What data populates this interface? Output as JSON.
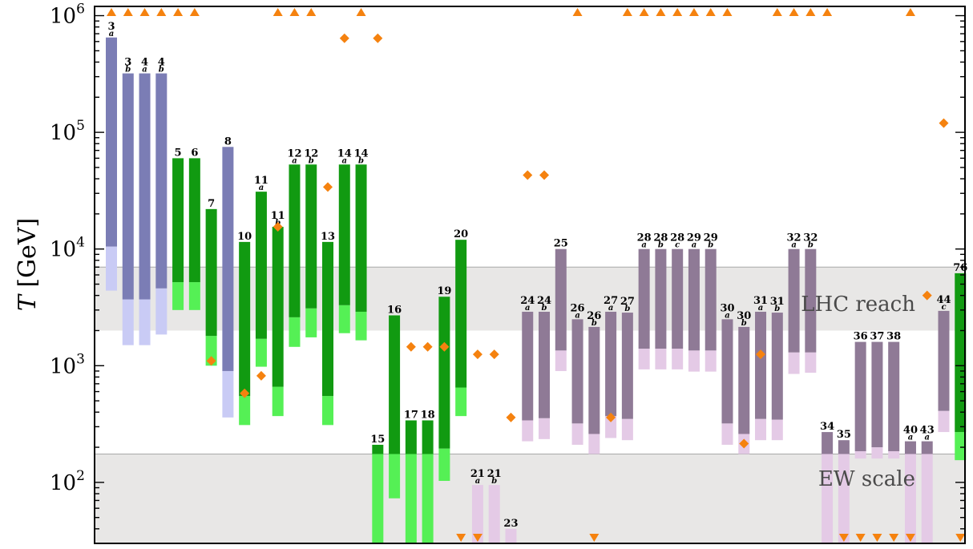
{
  "chart_data": {
    "type": "bar",
    "ylabel_var": "T",
    "ylabel_unit": "[GeV]",
    "yscale": "log",
    "ylim": [
      30,
      1200000
    ],
    "y_ticks": [
      {
        "value": 100,
        "exp": "2"
      },
      {
        "value": 1000,
        "exp": "3"
      },
      {
        "value": 10000,
        "exp": "4"
      },
      {
        "value": 100000,
        "exp": "5"
      },
      {
        "value": 1000000,
        "exp": "6"
      }
    ],
    "tick_base": "10",
    "bands": [
      {
        "label": "LHC reach",
        "low": 2000,
        "high": 7000
      },
      {
        "label": "EW scale",
        "low": 30,
        "high": 175
      }
    ],
    "colors": {
      "blue_dark": "#7b7db5",
      "blue_light": "#c9cbf5",
      "green_dark": "#119a11",
      "green_light": "#55f055",
      "purple_dark": "#8f7a96",
      "purple_light": "#e4cae6",
      "marker": "#f5820f",
      "band": "#e8e7e6"
    },
    "bars": [
      {
        "num": "3",
        "sub": "a",
        "c": "blue",
        "top": 650000,
        "mid": 10500,
        "bot": 4400
      },
      {
        "num": "3",
        "sub": "b",
        "c": "blue",
        "top": 320000,
        "mid": 3700,
        "bot": 1500
      },
      {
        "num": "4",
        "sub": "a",
        "c": "blue",
        "top": 320000,
        "mid": 3700,
        "bot": 1500
      },
      {
        "num": "4",
        "sub": "b",
        "c": "blue",
        "top": 320000,
        "mid": 4600,
        "bot": 1850
      },
      {
        "num": "5",
        "sub": "",
        "c": "green",
        "top": 60000,
        "mid": 5200,
        "bot": 3000
      },
      {
        "num": "6",
        "sub": "",
        "c": "green",
        "top": 60000,
        "mid": 5200,
        "bot": 3000
      },
      {
        "num": "7",
        "sub": "",
        "c": "green",
        "top": 22000,
        "mid": 1800,
        "bot": 1000
      },
      {
        "num": "8",
        "sub": "",
        "c": "blue",
        "top": 75000,
        "mid": 900,
        "bot": 360
      },
      {
        "num": "10",
        "sub": "",
        "c": "green",
        "top": 11500,
        "mid": 550,
        "bot": 310
      },
      {
        "num": "11",
        "sub": "a",
        "c": "green",
        "top": 31000,
        "mid": 1700,
        "bot": 980
      },
      {
        "num": "11",
        "sub": "b",
        "c": "green",
        "top": 15500,
        "mid": 660,
        "bot": 370
      },
      {
        "num": "12",
        "sub": "a",
        "c": "green",
        "top": 53000,
        "mid": 2600,
        "bot": 1450
      },
      {
        "num": "12",
        "sub": "b",
        "c": "green",
        "top": 53000,
        "mid": 3100,
        "bot": 1750
      },
      {
        "num": "13",
        "sub": "",
        "c": "green",
        "top": 11500,
        "mid": 550,
        "bot": 310
      },
      {
        "num": "14",
        "sub": "a",
        "c": "green",
        "top": 53000,
        "mid": 3300,
        "bot": 1900
      },
      {
        "num": "14",
        "sub": "b",
        "c": "green",
        "top": 53000,
        "mid": 2900,
        "bot": 1650
      },
      {
        "num": "15",
        "sub": "",
        "c": "green",
        "top": 210,
        "mid": 175,
        "bot": 30
      },
      {
        "num": "16",
        "sub": "",
        "c": "green",
        "top": 2700,
        "mid": 175,
        "bot": 73
      },
      {
        "num": "17",
        "sub": "",
        "c": "green",
        "top": 340,
        "mid": 175,
        "bot": 30
      },
      {
        "num": "18",
        "sub": "",
        "c": "green",
        "top": 340,
        "mid": 175,
        "bot": 30
      },
      {
        "num": "19",
        "sub": "",
        "c": "green",
        "top": 3900,
        "mid": 195,
        "bot": 103
      },
      {
        "num": "20",
        "sub": "",
        "c": "green",
        "top": 12000,
        "mid": 650,
        "bot": 370
      },
      {
        "num": "21",
        "sub": "a",
        "c": "purple",
        "top": 95,
        "mid": 95,
        "bot": 30
      },
      {
        "num": "21",
        "sub": "b",
        "c": "purple",
        "top": 95,
        "mid": 95,
        "bot": 30
      },
      {
        "num": "23",
        "sub": "",
        "c": "purple",
        "top": 40,
        "mid": 40,
        "bot": 30
      },
      {
        "num": "24",
        "sub": "a",
        "c": "purple",
        "top": 2900,
        "mid": 340,
        "bot": 225
      },
      {
        "num": "24",
        "sub": "b",
        "c": "purple",
        "top": 2900,
        "mid": 355,
        "bot": 235
      },
      {
        "num": "25",
        "sub": "",
        "c": "purple",
        "top": 10000,
        "mid": 1350,
        "bot": 900
      },
      {
        "num": "26",
        "sub": "a",
        "c": "purple",
        "top": 2500,
        "mid": 320,
        "bot": 210
      },
      {
        "num": "26",
        "sub": "b",
        "c": "purple",
        "top": 2150,
        "mid": 260,
        "bot": 175
      },
      {
        "num": "27",
        "sub": "a",
        "c": "purple",
        "top": 2900,
        "mid": 370,
        "bot": 240
      },
      {
        "num": "27",
        "sub": "b",
        "c": "purple",
        "top": 2850,
        "mid": 350,
        "bot": 230
      },
      {
        "num": "28",
        "sub": "a",
        "c": "purple",
        "top": 10000,
        "mid": 1400,
        "bot": 930
      },
      {
        "num": "28",
        "sub": "b",
        "c": "purple",
        "top": 10000,
        "mid": 1400,
        "bot": 930
      },
      {
        "num": "28",
        "sub": "c",
        "c": "purple",
        "top": 10000,
        "mid": 1400,
        "bot": 930
      },
      {
        "num": "29",
        "sub": "a",
        "c": "purple",
        "top": 10000,
        "mid": 1350,
        "bot": 890
      },
      {
        "num": "29",
        "sub": "b",
        "c": "purple",
        "top": 10000,
        "mid": 1350,
        "bot": 890
      },
      {
        "num": "30",
        "sub": "a",
        "c": "purple",
        "top": 2500,
        "mid": 320,
        "bot": 210
      },
      {
        "num": "30",
        "sub": "b",
        "c": "purple",
        "top": 2150,
        "mid": 260,
        "bot": 175
      },
      {
        "num": "31",
        "sub": "a",
        "c": "purple",
        "top": 2900,
        "mid": 350,
        "bot": 230
      },
      {
        "num": "31",
        "sub": "b",
        "c": "purple",
        "top": 2850,
        "mid": 345,
        "bot": 230
      },
      {
        "num": "32",
        "sub": "a",
        "c": "purple",
        "top": 10000,
        "mid": 1300,
        "bot": 850
      },
      {
        "num": "32",
        "sub": "b",
        "c": "purple",
        "top": 10000,
        "mid": 1300,
        "bot": 870
      },
      {
        "num": "34",
        "sub": "",
        "c": "purple",
        "top": 270,
        "mid": 175,
        "bot": 30
      },
      {
        "num": "35",
        "sub": "",
        "c": "purple",
        "top": 230,
        "mid": 175,
        "bot": 30
      },
      {
        "num": "36",
        "sub": "",
        "c": "purple",
        "top": 1600,
        "mid": 185,
        "bot": 160
      },
      {
        "num": "37",
        "sub": "",
        "c": "purple",
        "top": 1600,
        "mid": 200,
        "bot": 160
      },
      {
        "num": "38",
        "sub": "",
        "c": "purple",
        "top": 1600,
        "mid": 185,
        "bot": 160
      },
      {
        "num": "40",
        "sub": "a",
        "c": "purple",
        "top": 225,
        "mid": 175,
        "bot": 30
      },
      {
        "num": "43",
        "sub": "a",
        "c": "purple",
        "top": 225,
        "mid": 175,
        "bot": 30
      },
      {
        "num": "44",
        "sub": "c",
        "c": "purple",
        "top": 2950,
        "mid": 410,
        "bot": 270
      },
      {
        "num": "76",
        "sub": "",
        "c": "green",
        "top": 6200,
        "mid": 270,
        "bot": 155
      }
    ],
    "markers_diamond": [
      {
        "bar": 6,
        "value": 1100
      },
      {
        "bar": 8,
        "value": 580
      },
      {
        "bar": 9,
        "value": 820
      },
      {
        "bar": 10,
        "value": 15500
      },
      {
        "bar": 13,
        "value": 34000
      },
      {
        "bar": 14,
        "value": 640000
      },
      {
        "bar": 16,
        "value": 640000
      },
      {
        "bar": 18,
        "value": 1450
      },
      {
        "bar": 19,
        "value": 1450
      },
      {
        "bar": 20,
        "value": 1450
      },
      {
        "bar": 22,
        "value": 1250
      },
      {
        "bar": 23,
        "value": 1250
      },
      {
        "bar": 24,
        "value": 360
      },
      {
        "bar": 25,
        "value": 43000
      },
      {
        "bar": 26,
        "value": 43000
      },
      {
        "bar": 30,
        "value": 360
      },
      {
        "bar": 38,
        "value": 215
      },
      {
        "bar": 39,
        "value": 1250
      },
      {
        "bar": 49,
        "value": 4000
      },
      {
        "bar": 50,
        "value": 120000
      }
    ],
    "markers_up_at_bar": [
      0,
      1,
      2,
      3,
      4,
      5,
      10,
      11,
      12,
      15,
      28,
      31,
      32,
      33,
      34,
      35,
      36,
      37,
      40,
      41,
      42,
      43,
      48
    ],
    "markers_down_at_bar": [
      21,
      22,
      29,
      44,
      45,
      46,
      47,
      48,
      51
    ]
  }
}
